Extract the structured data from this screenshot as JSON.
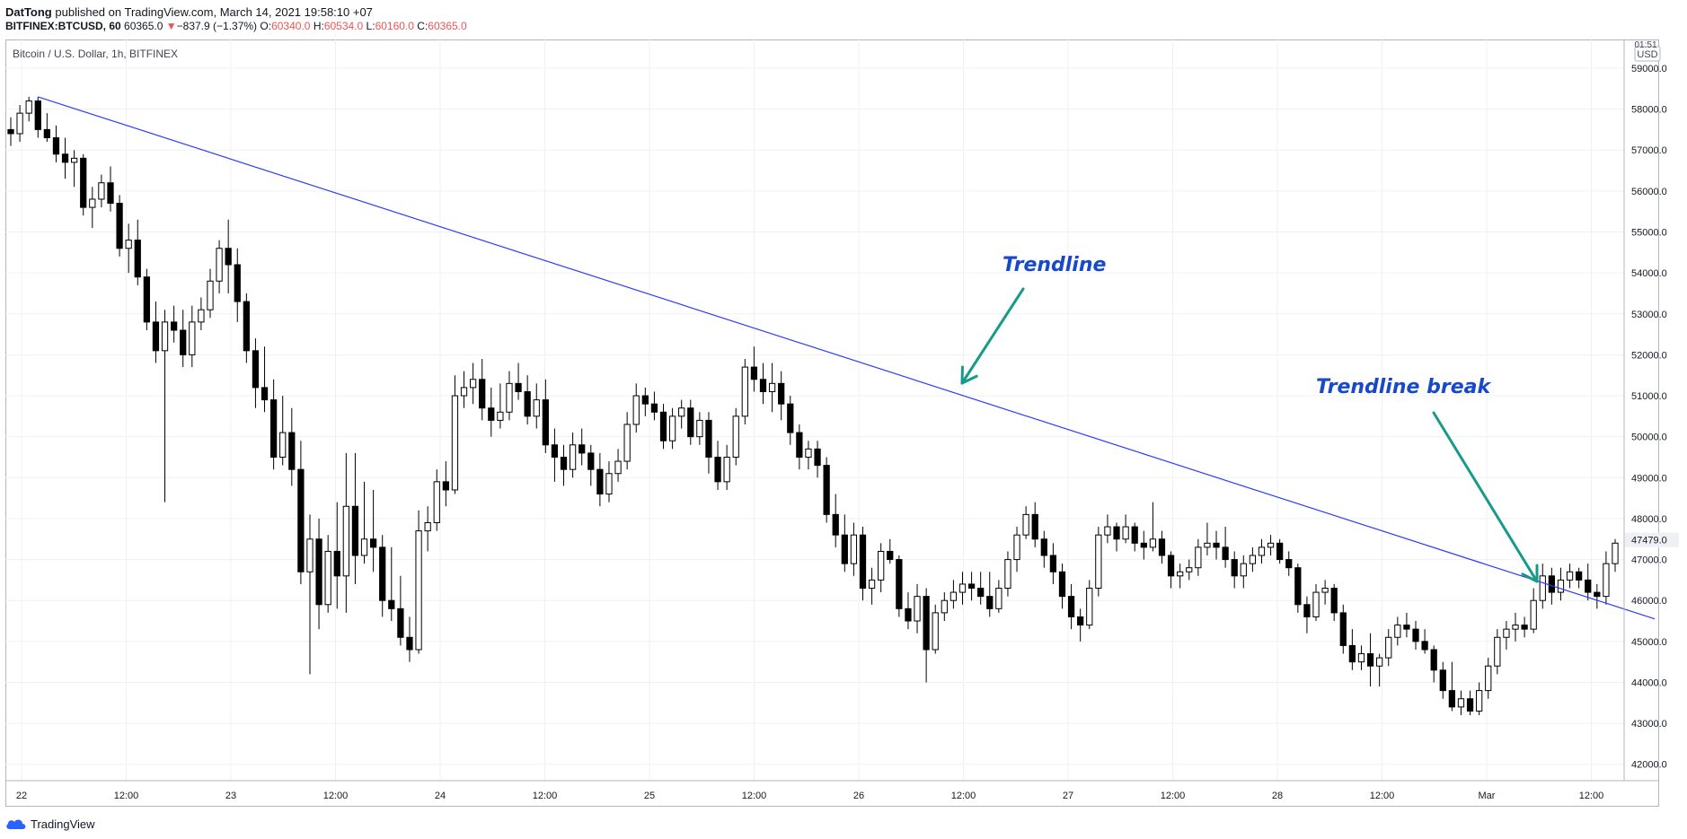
{
  "header": {
    "author": "DatTong",
    "published_text": "published on TradingView.com, March 14, 2021 19:58:10 +07",
    "symbol": "BITFINEX:BTCUSD, 60",
    "last_price": "60365.0",
    "change_arrow": "▼",
    "change": "−837.9 (−1.37%)",
    "open_label": "O:",
    "open": "60340.0",
    "high_label": "H:",
    "high": "60534.0",
    "low_label": "L:",
    "low": "60160.0",
    "close_label": "C:",
    "close": "60365.0"
  },
  "footer": {
    "brand": "TradingView"
  },
  "colors": {
    "trendline": "#2b3bff",
    "annotation_text": "#1749c9",
    "arrow": "#169b8b",
    "grid": "#eef0f4",
    "candle": "#000000",
    "negative": "#ef5350",
    "price_tag_bg": "#eef0f4"
  },
  "chart_data": {
    "type": "candlestick",
    "title": "Bitcoin / U.S. Dollar, 1h, BITFINEX",
    "currency_label": "USD",
    "top_badge": "01:51",
    "last_price_label": "47479.0",
    "ylim": [
      41600,
      59700
    ],
    "y_ticks": [
      "42000.0",
      "43000.0",
      "44000.0",
      "45000.0",
      "46000.0",
      "47000.0",
      "48000.0",
      "49000.0",
      "50000.0",
      "51000.0",
      "52000.0",
      "53000.0",
      "54000.0",
      "55000.0",
      "56000.0",
      "57000.0",
      "58000.0",
      "59000.0"
    ],
    "x_ticks": [
      "22",
      "12:00",
      "23",
      "12:00",
      "24",
      "12:00",
      "25",
      "12:00",
      "26",
      "12:00",
      "27",
      "12:00",
      "28",
      "12:00",
      "Mar",
      "12:00"
    ],
    "grid": true,
    "candles": [
      [
        57500,
        57800,
        57100,
        57400
      ],
      [
        57400,
        58100,
        57200,
        57900
      ],
      [
        57900,
        58300,
        57700,
        58200
      ],
      [
        58200,
        58300,
        57300,
        57500
      ],
      [
        57500,
        57900,
        57200,
        57300
      ],
      [
        57300,
        57600,
        56700,
        56900
      ],
      [
        56900,
        57300,
        56300,
        56700
      ],
      [
        56700,
        57000,
        56100,
        56800
      ],
      [
        56800,
        56900,
        55400,
        55600
      ],
      [
        55600,
        56100,
        55100,
        55800
      ],
      [
        55800,
        56400,
        55600,
        56200
      ],
      [
        56200,
        56600,
        55500,
        55700
      ],
      [
        55700,
        55900,
        54400,
        54600
      ],
      [
        54600,
        55200,
        54000,
        54800
      ],
      [
        54800,
        55300,
        53700,
        53900
      ],
      [
        53900,
        54100,
        52600,
        52800
      ],
      [
        52800,
        53300,
        51800,
        52100
      ],
      [
        52100,
        53100,
        48400,
        52800
      ],
      [
        52800,
        53200,
        52300,
        52600
      ],
      [
        52600,
        53100,
        51700,
        52000
      ],
      [
        52000,
        53200,
        51700,
        52800
      ],
      [
        52800,
        53400,
        52600,
        53100
      ],
      [
        53100,
        54100,
        52900,
        53800
      ],
      [
        53800,
        54800,
        53500,
        54600
      ],
      [
        54600,
        55300,
        53500,
        54200
      ],
      [
        54200,
        54600,
        52800,
        53300
      ],
      [
        53300,
        53500,
        51800,
        52100
      ],
      [
        52100,
        52400,
        50700,
        51200
      ],
      [
        51200,
        52200,
        50600,
        50900
      ],
      [
        50900,
        51400,
        49200,
        49500
      ],
      [
        49500,
        51000,
        49300,
        50100
      ],
      [
        50100,
        50700,
        48800,
        49200
      ],
      [
        49200,
        49900,
        46400,
        46700
      ],
      [
        46700,
        48100,
        44200,
        47500
      ],
      [
        47500,
        48000,
        45300,
        45900
      ],
      [
        45900,
        47600,
        45700,
        47200
      ],
      [
        47200,
        48400,
        45800,
        46600
      ],
      [
        46600,
        49600,
        45700,
        48300
      ],
      [
        48300,
        49600,
        46400,
        47100
      ],
      [
        47100,
        48900,
        46900,
        47500
      ],
      [
        47500,
        48700,
        46700,
        47300
      ],
      [
        47300,
        47600,
        45600,
        46000
      ],
      [
        46000,
        47300,
        45500,
        45800
      ],
      [
        45800,
        46600,
        44900,
        45100
      ],
      [
        45100,
        45600,
        44500,
        44800
      ],
      [
        44800,
        48200,
        44700,
        47700
      ],
      [
        47700,
        48300,
        47200,
        47900
      ],
      [
        47900,
        49200,
        47700,
        48900
      ],
      [
        48900,
        49400,
        48300,
        48700
      ],
      [
        48700,
        51500,
        48600,
        51000
      ],
      [
        51000,
        51600,
        50700,
        51200
      ],
      [
        51200,
        51800,
        50800,
        51400
      ],
      [
        51400,
        51900,
        50400,
        50700
      ],
      [
        50700,
        51200,
        50000,
        50400
      ],
      [
        50400,
        51300,
        50200,
        50600
      ],
      [
        50600,
        51600,
        50400,
        51300
      ],
      [
        51300,
        51800,
        50900,
        51100
      ],
      [
        51100,
        51500,
        50300,
        50500
      ],
      [
        50500,
        51300,
        50200,
        50900
      ],
      [
        50900,
        51400,
        49600,
        49800
      ],
      [
        49800,
        50200,
        48900,
        49500
      ],
      [
        49500,
        49800,
        48800,
        49200
      ],
      [
        49200,
        50100,
        49000,
        49800
      ],
      [
        49800,
        50200,
        49300,
        49600
      ],
      [
        49600,
        49800,
        48800,
        49200
      ],
      [
        49200,
        49600,
        48300,
        48600
      ],
      [
        48600,
        49400,
        48400,
        49100
      ],
      [
        49100,
        49700,
        48900,
        49400
      ],
      [
        49400,
        50600,
        49200,
        50300
      ],
      [
        50300,
        51300,
        50100,
        51000
      ],
      [
        51000,
        51200,
        50500,
        50800
      ],
      [
        50800,
        51100,
        50400,
        50600
      ],
      [
        50600,
        50800,
        49700,
        49900
      ],
      [
        49900,
        50700,
        49700,
        50500
      ],
      [
        50500,
        50900,
        50200,
        50700
      ],
      [
        50700,
        50900,
        49800,
        50000
      ],
      [
        50000,
        50600,
        49800,
        50400
      ],
      [
        50400,
        50600,
        49100,
        49500
      ],
      [
        49500,
        49900,
        48700,
        48900
      ],
      [
        48900,
        49800,
        48700,
        49500
      ],
      [
        49500,
        50700,
        49300,
        50500
      ],
      [
        50500,
        51900,
        50300,
        51700
      ],
      [
        51700,
        52200,
        51100,
        51400
      ],
      [
        51400,
        51800,
        50800,
        51100
      ],
      [
        51100,
        51800,
        50600,
        51300
      ],
      [
        51300,
        51600,
        50400,
        50800
      ],
      [
        50800,
        51000,
        49800,
        50100
      ],
      [
        50100,
        50300,
        49200,
        49500
      ],
      [
        49500,
        49900,
        49200,
        49700
      ],
      [
        49700,
        49900,
        49000,
        49300
      ],
      [
        49300,
        49500,
        47900,
        48100
      ],
      [
        48100,
        48600,
        47300,
        47600
      ],
      [
        47600,
        48100,
        46700,
        46900
      ],
      [
        46900,
        47900,
        46600,
        47600
      ],
      [
        47600,
        47800,
        46000,
        46300
      ],
      [
        46300,
        46800,
        45900,
        46500
      ],
      [
        46500,
        47400,
        46200,
        47200
      ],
      [
        47200,
        47500,
        46900,
        47000
      ],
      [
        47000,
        47100,
        45600,
        45800
      ],
      [
        45800,
        46200,
        45300,
        45500
      ],
      [
        45500,
        46400,
        45200,
        46100
      ],
      [
        46100,
        46300,
        44000,
        44800
      ],
      [
        44800,
        45900,
        44700,
        45700
      ],
      [
        45700,
        46200,
        45500,
        46000
      ],
      [
        46000,
        46500,
        45800,
        46200
      ],
      [
        46200,
        46700,
        45900,
        46400
      ],
      [
        46400,
        46700,
        46000,
        46300
      ],
      [
        46300,
        46700,
        45900,
        46100
      ],
      [
        46100,
        46700,
        45600,
        45800
      ],
      [
        45800,
        46500,
        45700,
        46300
      ],
      [
        46300,
        47200,
        46100,
        47000
      ],
      [
        47000,
        47800,
        46700,
        47600
      ],
      [
        47600,
        48300,
        47500,
        48100
      ],
      [
        48100,
        48400,
        47300,
        47500
      ],
      [
        47500,
        47700,
        46800,
        47100
      ],
      [
        47100,
        47400,
        46400,
        46700
      ],
      [
        46700,
        46900,
        45800,
        46100
      ],
      [
        46100,
        46400,
        45300,
        45600
      ],
      [
        45600,
        45800,
        45000,
        45400
      ],
      [
        45400,
        46500,
        45300,
        46300
      ],
      [
        46300,
        47800,
        46100,
        47600
      ],
      [
        47600,
        48100,
        47400,
        47800
      ],
      [
        47800,
        47900,
        47200,
        47500
      ],
      [
        47500,
        48100,
        47400,
        47800
      ],
      [
        47800,
        47900,
        47200,
        47400
      ],
      [
        47400,
        47700,
        47000,
        47300
      ],
      [
        47300,
        48400,
        47200,
        47500
      ],
      [
        47500,
        47700,
        46900,
        47100
      ],
      [
        47100,
        47200,
        46300,
        46600
      ],
      [
        46600,
        46900,
        46300,
        46700
      ],
      [
        46700,
        47000,
        46500,
        46800
      ],
      [
        46800,
        47500,
        46600,
        47300
      ],
      [
        47300,
        47900,
        47100,
        47400
      ],
      [
        47400,
        47700,
        47000,
        47300
      ],
      [
        47300,
        47800,
        46800,
        47000
      ],
      [
        47000,
        47200,
        46300,
        46600
      ],
      [
        46600,
        47100,
        46300,
        46900
      ],
      [
        46900,
        47300,
        46700,
        47100
      ],
      [
        47100,
        47500,
        46900,
        47300
      ],
      [
        47300,
        47600,
        47100,
        47400
      ],
      [
        47400,
        47500,
        46900,
        47000
      ],
      [
        47000,
        47200,
        46600,
        46800
      ],
      [
        46800,
        46900,
        45700,
        45900
      ],
      [
        45900,
        46100,
        45200,
        45600
      ],
      [
        45600,
        46400,
        45500,
        46200
      ],
      [
        46200,
        46500,
        45900,
        46300
      ],
      [
        46300,
        46400,
        45500,
        45700
      ],
      [
        45700,
        45900,
        44700,
        44900
      ],
      [
        44900,
        45300,
        44300,
        44500
      ],
      [
        44500,
        44900,
        44300,
        44700
      ],
      [
        44700,
        45200,
        43900,
        44400
      ],
      [
        44400,
        44700,
        43900,
        44600
      ],
      [
        44600,
        45300,
        44400,
        45100
      ],
      [
        45100,
        45600,
        44900,
        45400
      ],
      [
        45400,
        45700,
        45100,
        45300
      ],
      [
        45300,
        45500,
        44800,
        45000
      ],
      [
        45000,
        45300,
        44700,
        44800
      ],
      [
        44800,
        44900,
        44000,
        44300
      ],
      [
        44300,
        44500,
        43600,
        43800
      ],
      [
        43800,
        44500,
        43300,
        43400
      ],
      [
        43400,
        43800,
        43200,
        43600
      ],
      [
        43600,
        43800,
        43200,
        43300
      ],
      [
        43300,
        44000,
        43200,
        43800
      ],
      [
        43800,
        44600,
        43600,
        44400
      ],
      [
        44400,
        45300,
        44200,
        45100
      ],
      [
        45100,
        45500,
        44800,
        45300
      ],
      [
        45300,
        45700,
        45000,
        45400
      ],
      [
        45400,
        45600,
        45100,
        45300
      ],
      [
        45300,
        46300,
        45200,
        46000
      ],
      [
        46000,
        46900,
        45800,
        46600
      ],
      [
        46600,
        46800,
        45900,
        46200
      ],
      [
        46200,
        46800,
        46000,
        46500
      ],
      [
        46500,
        46900,
        46300,
        46700
      ],
      [
        46700,
        46800,
        46300,
        46500
      ],
      [
        46500,
        46900,
        46000,
        46200
      ],
      [
        46200,
        46400,
        45800,
        46100
      ],
      [
        46100,
        47200,
        45900,
        46900
      ],
      [
        46900,
        47500,
        46700,
        47400
      ]
    ]
  },
  "annotations": {
    "trendline_label": "Trendline",
    "trendline_break_label": "Trendline break"
  }
}
